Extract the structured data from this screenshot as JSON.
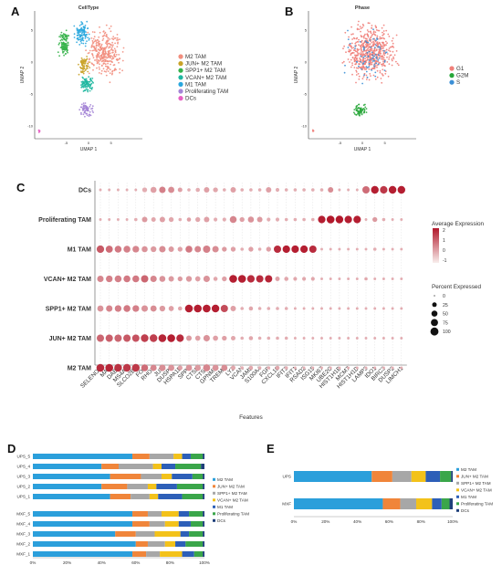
{
  "panels": {
    "a": "A",
    "b": "B",
    "c": "C",
    "d": "D",
    "e": "E"
  },
  "colors": {
    "M2 TAM": "#f28e7e",
    "JUN+ M2 TAM": "#c9a227",
    "SPP1+ M2 TAM": "#35b24a",
    "VCAN+ M2 TAM": "#1fb7a0",
    "M1 TAM": "#2aa7de",
    "Proliferating TAM": "#a484d6",
    "DCs": "#e75fc3",
    "G1": "#f0807a",
    "G2M": "#27a638",
    "S": "#3b8fd6",
    "bar_M2 TAM": "#2b9fdb",
    "bar_JUN+ M2 TAM": "#f0853a",
    "bar_SPP1+ M2 TAM": "#a7a7a7",
    "bar_VCAN+ M2 TAM": "#f3c21a",
    "bar_M1 TAM": "#2d5fb8",
    "bar_Proliferating TAM": "#3aa64a",
    "bar_DCs": "#1e3f7a"
  },
  "chart_data": [
    {
      "type": "scatter",
      "panel": "A",
      "title": "CellType",
      "xlabel": "UMAP 1",
      "ylabel": "UMAP 2",
      "xlim": [
        -12,
        12
      ],
      "ylim": [
        -12,
        8
      ],
      "xticks": [
        "-5",
        "0",
        "5"
      ],
      "yticks": [
        "5",
        "0",
        "-5",
        "-10"
      ],
      "legend": [
        "M2 TAM",
        "JUN+ M2 TAM",
        "SPP1+ M2 TAM",
        "VCAN+ M2 TAM",
        "M1 TAM",
        "Proliferating TAM",
        "DCs"
      ],
      "clusters": [
        {
          "name": "M2 TAM",
          "cx": 3.5,
          "cy": 1.5,
          "rx": 5,
          "ry": 5,
          "n": 320
        },
        {
          "name": "JUN+ M2 TAM",
          "cx": -1,
          "cy": -0.5,
          "rx": 1.6,
          "ry": 1.8,
          "n": 70
        },
        {
          "name": "SPP1+ M2 TAM",
          "cx": -5.5,
          "cy": 3,
          "rx": 1.6,
          "ry": 3,
          "n": 110
        },
        {
          "name": "VCAN+ M2 TAM",
          "cx": -0.5,
          "cy": -3.5,
          "rx": 2,
          "ry": 1.5,
          "n": 90
        },
        {
          "name": "M1 TAM",
          "cx": -1.5,
          "cy": 4.5,
          "rx": 2.2,
          "ry": 2.3,
          "n": 110
        },
        {
          "name": "Proliferating TAM",
          "cx": -0.5,
          "cy": -7.5,
          "rx": 2,
          "ry": 1.4,
          "n": 70
        },
        {
          "name": "DCs",
          "cx": -11,
          "cy": -10.8,
          "rx": 0.3,
          "ry": 0.3,
          "n": 6
        }
      ]
    },
    {
      "type": "scatter",
      "panel": "B",
      "title": "Phase",
      "xlabel": "UMAP 1",
      "ylabel": "UMAP 2",
      "xlim": [
        -12,
        12
      ],
      "ylim": [
        -12,
        8
      ],
      "xticks": [
        "-5",
        "0",
        "5"
      ],
      "yticks": [
        "5",
        "0",
        "-5",
        "-10"
      ],
      "legend": [
        "G1",
        "G2M",
        "S"
      ],
      "clusters": [
        {
          "name": "G1",
          "cx": 1.5,
          "cy": 1.5,
          "rx": 7,
          "ry": 5.5,
          "n": 560
        },
        {
          "name": "G2M",
          "cx": -0.5,
          "cy": -7.5,
          "rx": 2,
          "ry": 1.3,
          "n": 60
        },
        {
          "name": "S",
          "cx": 1,
          "cy": 1,
          "rx": 6.5,
          "ry": 5.5,
          "n": 80
        },
        {
          "name": "G1",
          "cx": -11,
          "cy": -10.8,
          "rx": 0.3,
          "ry": 0.3,
          "n": 5
        }
      ]
    },
    {
      "type": "dot",
      "panel": "C",
      "xlabel": "Features",
      "rows": [
        "DCs",
        "Proliferating TAM",
        "M1 TAM",
        "VCAN+ M2 TAM",
        "SPP1+ M2 TAM",
        "JUN+ M2 TAM",
        "M2 TAM"
      ],
      "features": [
        "SELENOP",
        "MAF",
        "DAB2",
        "MS4A7",
        "SLCO2B1",
        "FOS",
        "RHOB",
        "JUN",
        "DUSP1",
        "HSPA1B",
        "SPP1",
        "CTSD",
        "CTSB",
        "GPNMB",
        "TREM2",
        "LYZ",
        "VCAN",
        "JAML",
        "S100A4",
        "FGR",
        "CXCL10",
        "IFIT3",
        "IFIT1",
        "RSAD2",
        "ISG15",
        "MKI67",
        "UBE2C",
        "HIST1H1B",
        "MCM7",
        "HIST1H1D",
        "LAMP3",
        "IDO1",
        "BIRC3",
        "DUSP2",
        "LIMCH1"
      ],
      "color_legend": {
        "title": "Average Expression",
        "ticks": [
          "2",
          "1",
          "0",
          "-1"
        ]
      },
      "size_legend": {
        "title": "Percent Expressed",
        "values": [
          "0",
          "25",
          "50",
          "75",
          "100"
        ]
      },
      "expression": [
        [
          0,
          0,
          0,
          0,
          0,
          0,
          0.2,
          0.7,
          0.5,
          0.2,
          0,
          0,
          0.2,
          0.1,
          0,
          0.2,
          0,
          0,
          0,
          0.2,
          0,
          0,
          0,
          0,
          0,
          0,
          0.5,
          0,
          0,
          0,
          1,
          2.2,
          1.8,
          2.2,
          2.2
        ],
        [
          0,
          0,
          0,
          0,
          0,
          0.3,
          0.1,
          0.2,
          0.1,
          0,
          0.2,
          0.1,
          0.2,
          0,
          0,
          0.6,
          0.2,
          0.4,
          0.3,
          0,
          0,
          0,
          0,
          0,
          0,
          2.2,
          2.3,
          2.3,
          2.2,
          2.2,
          0,
          0.3,
          0,
          0,
          0
        ],
        [
          1.3,
          1,
          0.8,
          0.7,
          0.6,
          0.4,
          0.3,
          0.5,
          0.3,
          0.2,
          0.8,
          0.6,
          0.7,
          0.5,
          0.3,
          0.2,
          0,
          0.2,
          0,
          0.2,
          2,
          2.2,
          2.2,
          2.2,
          2,
          0,
          0,
          0,
          0,
          0,
          0,
          0,
          0,
          0,
          0
        ],
        [
          0.6,
          0.7,
          0.7,
          0.8,
          0.8,
          1.1,
          0.6,
          0.4,
          0.3,
          0.3,
          0.3,
          0.2,
          0.4,
          0.1,
          0.2,
          2.2,
          2.2,
          2,
          2,
          2.1,
          0.2,
          0.1,
          0.1,
          0.1,
          0.1,
          0,
          0,
          0,
          0,
          0,
          0.1,
          0,
          0,
          0,
          0
        ],
        [
          0.4,
          0.6,
          0.7,
          0.8,
          0.7,
          0.4,
          0.5,
          0.3,
          0.2,
          0.1,
          2.2,
          2.2,
          2.2,
          2.2,
          1.5,
          0.2,
          0,
          0.1,
          0,
          0,
          0,
          0,
          0,
          0,
          0,
          0,
          0,
          0,
          0,
          0,
          0,
          0,
          0,
          0,
          0
        ],
        [
          1.1,
          1.2,
          1.1,
          1.3,
          1.4,
          1.7,
          1.7,
          2.1,
          2.2,
          2,
          0.3,
          0.2,
          0.4,
          0.2,
          0.2,
          0.1,
          0,
          0.1,
          0,
          0,
          0,
          0,
          0,
          0,
          0,
          0,
          0,
          0,
          0,
          0,
          0,
          0,
          0,
          0,
          0
        ],
        [
          2,
          2.1,
          1.9,
          1.8,
          1.8,
          1,
          0.6,
          0.5,
          0.4,
          0.2,
          0.4,
          0.3,
          0.6,
          0.4,
          0.5,
          0.1,
          0,
          0.1,
          0,
          0,
          0.1,
          0,
          0,
          0,
          0,
          0,
          0,
          0,
          0,
          0,
          0,
          0,
          0,
          0,
          0
        ]
      ],
      "percent": [
        [
          5,
          5,
          5,
          5,
          5,
          30,
          50,
          60,
          55,
          25,
          10,
          20,
          40,
          30,
          10,
          40,
          10,
          10,
          10,
          40,
          15,
          10,
          10,
          10,
          10,
          10,
          40,
          5,
          5,
          5,
          80,
          90,
          85,
          90,
          90
        ],
        [
          5,
          5,
          5,
          5,
          10,
          40,
          25,
          40,
          30,
          10,
          20,
          30,
          40,
          15,
          15,
          70,
          30,
          50,
          40,
          15,
          15,
          10,
          10,
          10,
          10,
          85,
          95,
          90,
          85,
          85,
          5,
          30,
          10,
          5,
          5
        ],
        [
          85,
          75,
          70,
          70,
          65,
          50,
          45,
          60,
          40,
          30,
          70,
          60,
          80,
          60,
          30,
          30,
          10,
          30,
          10,
          30,
          80,
          85,
          85,
          85,
          80,
          5,
          5,
          5,
          5,
          5,
          5,
          10,
          5,
          5,
          5
        ],
        [
          60,
          65,
          70,
          70,
          70,
          80,
          60,
          50,
          40,
          30,
          45,
          35,
          60,
          20,
          30,
          95,
          95,
          85,
          80,
          80,
          25,
          20,
          15,
          15,
          15,
          5,
          5,
          5,
          5,
          5,
          10,
          5,
          5,
          5,
          5
        ],
        [
          55,
          60,
          65,
          70,
          65,
          60,
          55,
          45,
          35,
          20,
          95,
          95,
          95,
          90,
          80,
          40,
          10,
          20,
          10,
          10,
          10,
          10,
          5,
          5,
          5,
          5,
          5,
          5,
          5,
          5,
          5,
          5,
          5,
          5,
          5
        ],
        [
          80,
          80,
          80,
          80,
          80,
          90,
          90,
          95,
          95,
          85,
          40,
          35,
          60,
          35,
          30,
          25,
          10,
          20,
          10,
          10,
          10,
          10,
          5,
          5,
          5,
          5,
          5,
          5,
          5,
          5,
          5,
          5,
          5,
          5,
          5
        ],
        [
          95,
          95,
          90,
          90,
          90,
          70,
          55,
          60,
          55,
          30,
          55,
          50,
          75,
          55,
          55,
          25,
          10,
          20,
          10,
          10,
          20,
          10,
          5,
          5,
          5,
          5,
          5,
          5,
          5,
          5,
          5,
          5,
          5,
          5,
          5
        ]
      ]
    },
    {
      "type": "bar",
      "panel": "D",
      "orientation": "horizontal",
      "stacked": true,
      "categories": [
        "UPS_5",
        "UPS_4",
        "UPS_3",
        "UPS_2",
        "UPS_1",
        "MXF_5",
        "MXF_4",
        "MXF_3",
        "MXF_2",
        "MXF_1"
      ],
      "xticks": [
        "0%",
        "20%",
        "40%",
        "60%",
        "80%",
        "100%"
      ],
      "xlim": [
        0,
        100
      ],
      "legend": [
        "M2 TAM",
        "JUN+ M2 TAM",
        "SPP1+ M2 TAM",
        "VCAN+ M2 TAM",
        "M1 TAM",
        "Proliferating TAM",
        "DCs"
      ],
      "series": [
        {
          "name": "M2 TAM",
          "values": [
            58,
            40,
            45,
            40,
            45,
            58,
            58,
            48,
            60,
            58
          ]
        },
        {
          "name": "JUN+ M2 TAM",
          "values": [
            10,
            10,
            18,
            15,
            12,
            9,
            10,
            12,
            7,
            8
          ]
        },
        {
          "name": "SPP1+ M2 TAM",
          "values": [
            14,
            20,
            12,
            12,
            11,
            8,
            9,
            11,
            10,
            8
          ]
        },
        {
          "name": "VCAN+ M2 TAM",
          "values": [
            5,
            5,
            6,
            5,
            5,
            10,
            8,
            15,
            6,
            13
          ]
        },
        {
          "name": "M1 TAM",
          "values": [
            5,
            8,
            12,
            12,
            14,
            6,
            7,
            5,
            6,
            7
          ]
        },
        {
          "name": "Proliferating TAM",
          "values": [
            7,
            15,
            6,
            15,
            12,
            8,
            7,
            8,
            10,
            5
          ]
        },
        {
          "name": "DCs",
          "values": [
            1,
            2,
            1,
            1,
            1,
            1,
            1,
            1,
            1,
            1
          ]
        }
      ]
    },
    {
      "type": "bar",
      "panel": "E",
      "orientation": "horizontal",
      "stacked": true,
      "categories": [
        "UPS",
        "MXF"
      ],
      "xticks": [
        "0%",
        "20%",
        "40%",
        "60%",
        "80%",
        "100%"
      ],
      "xlim": [
        0,
        100
      ],
      "legend": [
        "M2 TAM",
        "JUN+ M2 TAM",
        "SPP1+ M2 TAM",
        "VCAN+ M2 TAM",
        "M1 TAM",
        "Proliferating TAM",
        "DCs"
      ],
      "series": [
        {
          "name": "M2 TAM",
          "values": [
            49,
            56
          ]
        },
        {
          "name": "JUN+ M2 TAM",
          "values": [
            13,
            11
          ]
        },
        {
          "name": "SPP1+ M2 TAM",
          "values": [
            12,
            10
          ]
        },
        {
          "name": "VCAN+ M2 TAM",
          "values": [
            9,
            10
          ]
        },
        {
          "name": "M1 TAM",
          "values": [
            9,
            6
          ]
        },
        {
          "name": "Proliferating TAM",
          "values": [
            7,
            5
          ]
        },
        {
          "name": "DCs",
          "values": [
            1,
            2
          ]
        }
      ]
    }
  ]
}
